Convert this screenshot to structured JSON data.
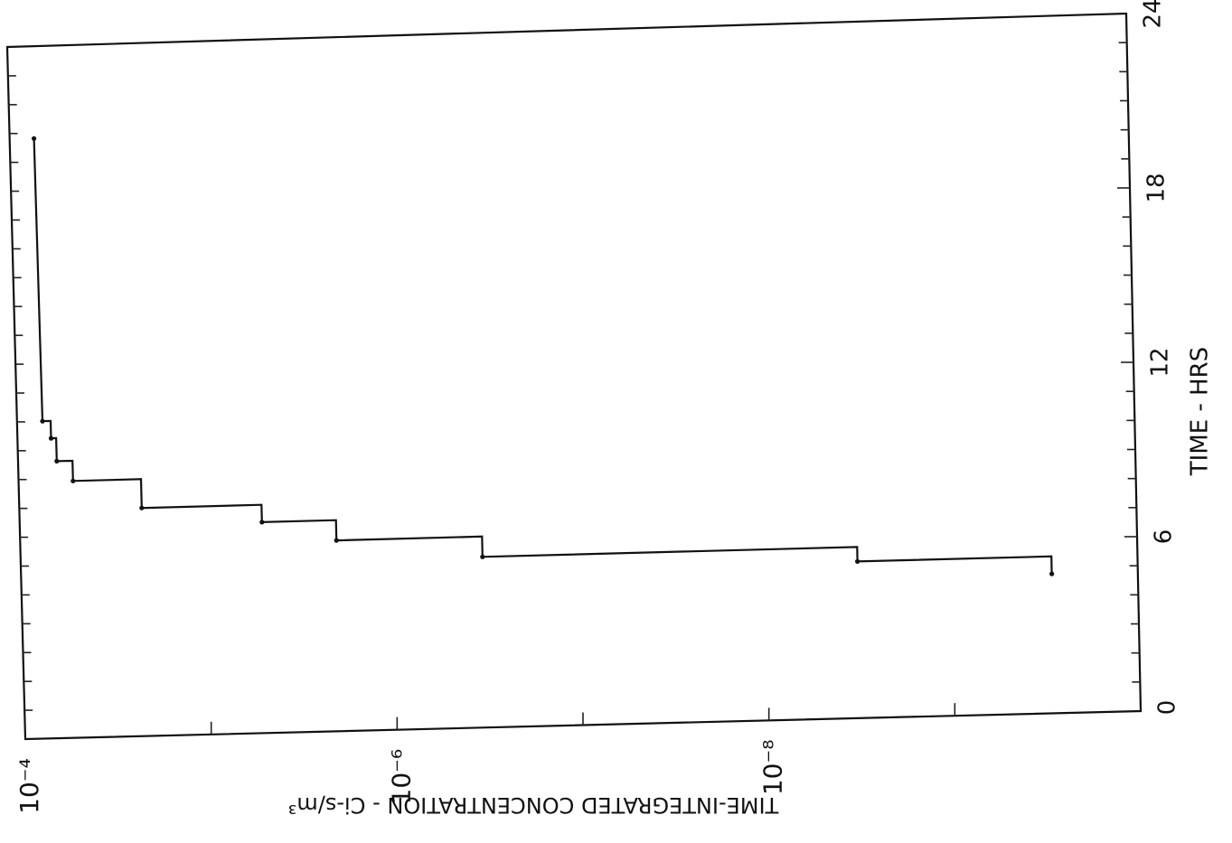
{
  "chart_data": {
    "type": "line",
    "orientation": "rotated-90",
    "x_axis": {
      "label": "TIME - HRS",
      "ticks": [
        "0",
        "6",
        "12",
        "18",
        "24"
      ],
      "range": [
        0,
        24
      ]
    },
    "y_axis": {
      "label": "TIME-INTEGRATED CONCENTRATION - Ci-s/m³",
      "scale": "log",
      "ticks": [
        "10⁻⁴",
        "10⁻⁶",
        "10⁻⁸"
      ],
      "range": [
        0.0001,
        1e-10
      ]
    },
    "series": [
      {
        "step": true,
        "points": [
          {
            "t": 4.8,
            "c": 2.9e-10
          },
          {
            "t": 5.4,
            "c": 2.9e-10
          },
          {
            "t": 5.4,
            "c": 3.2e-09
          },
          {
            "t": 5.9,
            "c": 3.2e-09
          },
          {
            "t": 5.9,
            "c": 3.3e-07
          },
          {
            "t": 6.6,
            "c": 3.3e-07
          },
          {
            "t": 6.6,
            "c": 2e-06
          },
          {
            "t": 7.3,
            "c": 2e-06
          },
          {
            "t": 7.3,
            "c": 5e-06
          },
          {
            "t": 7.9,
            "c": 5e-06
          },
          {
            "t": 7.9,
            "c": 2.2e-05
          },
          {
            "t": 8.9,
            "c": 2.2e-05
          },
          {
            "t": 8.9,
            "c": 5.1e-05
          },
          {
            "t": 9.6,
            "c": 5.1e-05
          },
          {
            "t": 9.6,
            "c": 6.2e-05
          },
          {
            "t": 10.4,
            "c": 6.2e-05
          },
          {
            "t": 10.4,
            "c": 6.6e-05
          },
          {
            "t": 11.0,
            "c": 6.6e-05
          },
          {
            "t": 11.0,
            "c": 7.3e-05
          },
          {
            "t": 20.8,
            "c": 7.4e-05
          }
        ]
      }
    ]
  }
}
